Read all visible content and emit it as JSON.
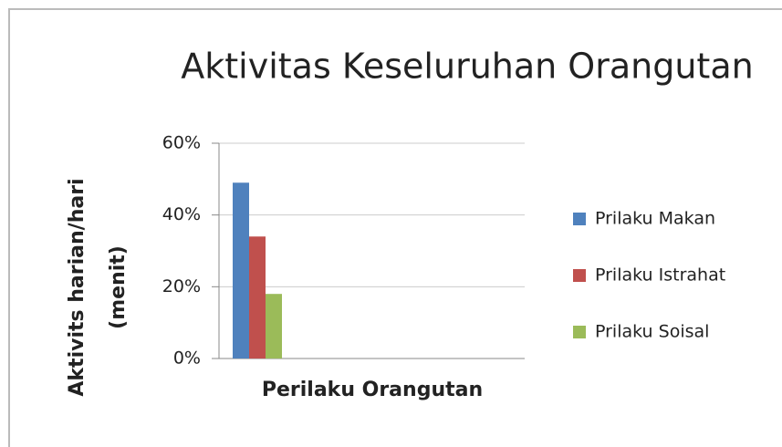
{
  "chart_data": {
    "type": "bar",
    "title": "Aktivitas Keseluruhan Orangutan",
    "x_label": "Perilaku Orangutan",
    "y_label": [
      "Aktivits harian/hari",
      "(menit)"
    ],
    "categories": [
      null
    ],
    "series": [
      {
        "name": "Prilaku Makan",
        "color": "#4f81bd",
        "values": [
          49
        ]
      },
      {
        "name": "Prilaku Istrahat",
        "color": "#c0504d",
        "values": [
          34
        ]
      },
      {
        "name": "Prilaku Soisal",
        "color": "#9bbb59",
        "values": [
          18
        ]
      }
    ],
    "ylim": [
      0,
      60
    ],
    "yticks": [
      {
        "value": 0,
        "label": "0%"
      },
      {
        "value": 20,
        "label": "20%"
      },
      {
        "value": 40,
        "label": "40%"
      },
      {
        "value": 60,
        "label": "60%"
      }
    ],
    "grid": true,
    "legend": "right"
  }
}
